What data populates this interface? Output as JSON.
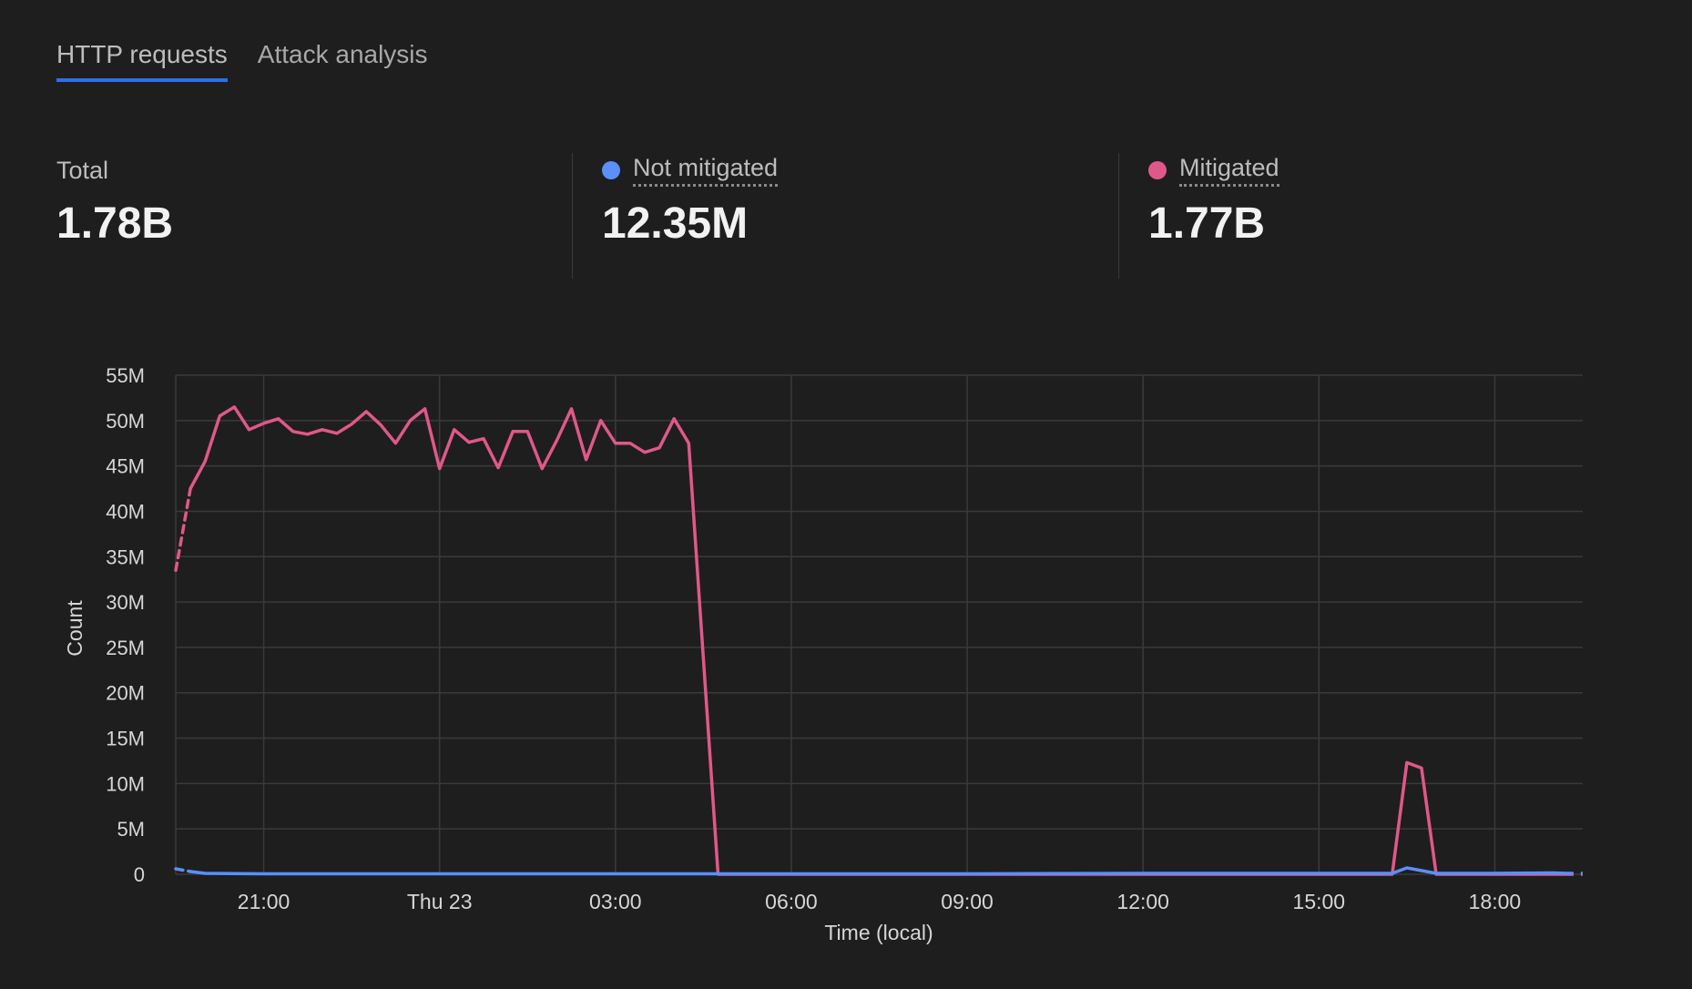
{
  "tabs": [
    {
      "label": "HTTP requests",
      "active": true
    },
    {
      "label": "Attack analysis",
      "active": false
    }
  ],
  "stats": {
    "total": {
      "label": "Total",
      "value": "1.78B"
    },
    "not_mitigated": {
      "label": "Not mitigated",
      "value": "12.35M",
      "color": "#5b8ff9"
    },
    "mitigated": {
      "label": "Mitigated",
      "value": "1.77B",
      "color": "#e0588a"
    }
  },
  "colors": {
    "accent": "#2f6feb",
    "not_mitigated": "#5b8ff9",
    "mitigated": "#e0588a"
  },
  "chart_data": {
    "type": "line",
    "xlabel": "Time (local)",
    "ylabel": "Count",
    "ylim": [
      0,
      55
    ],
    "y_ticks": [
      0,
      5,
      10,
      15,
      20,
      25,
      30,
      35,
      40,
      45,
      50,
      55
    ],
    "y_tick_labels": [
      "0",
      "5M",
      "10M",
      "15M",
      "20M",
      "25M",
      "30M",
      "35M",
      "40M",
      "45M",
      "50M",
      "55M"
    ],
    "y_unit": "M",
    "xlim": [
      "Wed 22 19:30",
      "Thu 23 19:30"
    ],
    "x_ticks": [
      "Wed 22 21:00",
      "Thu 23 00:00",
      "Thu 23 03:00",
      "Thu 23 06:00",
      "Thu 23 09:00",
      "Thu 23 12:00",
      "Thu 23 15:00",
      "Thu 23 18:00"
    ],
    "x_tick_labels": [
      "21:00",
      "Thu 23",
      "03:00",
      "06:00",
      "09:00",
      "12:00",
      "15:00",
      "18:00"
    ],
    "grid": true,
    "legend": "none",
    "series": [
      {
        "name": "Mitigated",
        "color": "#e0588a",
        "dashed_start": true,
        "points": [
          [
            "Wed 22 19:30",
            33.5
          ],
          [
            "Wed 22 19:45",
            42.5
          ],
          [
            "Wed 22 20:00",
            45.5
          ],
          [
            "Wed 22 20:15",
            50.5
          ],
          [
            "Wed 22 20:30",
            51.5
          ],
          [
            "Wed 22 20:45",
            49.0
          ],
          [
            "Wed 22 21:00",
            49.7
          ],
          [
            "Wed 22 21:15",
            50.2
          ],
          [
            "Wed 22 21:30",
            48.8
          ],
          [
            "Wed 22 21:45",
            48.5
          ],
          [
            "Wed 22 22:00",
            49.0
          ],
          [
            "Wed 22 22:15",
            48.6
          ],
          [
            "Wed 22 22:30",
            49.6
          ],
          [
            "Wed 22 22:45",
            51.0
          ],
          [
            "Wed 22 23:00",
            49.5
          ],
          [
            "Wed 22 23:15",
            47.5
          ],
          [
            "Wed 22 23:30",
            50.0
          ],
          [
            "Wed 22 23:45",
            51.3
          ],
          [
            "Thu 23 00:00",
            44.7
          ],
          [
            "Thu 23 00:15",
            49.0
          ],
          [
            "Thu 23 00:30",
            47.6
          ],
          [
            "Thu 23 00:45",
            48.0
          ],
          [
            "Thu 23 01:00",
            44.8
          ],
          [
            "Thu 23 01:15",
            48.8
          ],
          [
            "Thu 23 01:30",
            48.8
          ],
          [
            "Thu 23 01:45",
            44.7
          ],
          [
            "Thu 23 02:00",
            47.8
          ],
          [
            "Thu 23 02:15",
            51.3
          ],
          [
            "Thu 23 02:30",
            45.7
          ],
          [
            "Thu 23 02:45",
            50.0
          ],
          [
            "Thu 23 03:00",
            47.5
          ],
          [
            "Thu 23 03:15",
            47.5
          ],
          [
            "Thu 23 03:30",
            46.5
          ],
          [
            "Thu 23 03:45",
            47.0
          ],
          [
            "Thu 23 04:00",
            50.2
          ],
          [
            "Thu 23 04:15",
            47.5
          ],
          [
            "Thu 23 04:45",
            0.0
          ],
          [
            "Thu 23 06:00",
            0.0
          ],
          [
            "Thu 23 07:00",
            0.0
          ],
          [
            "Thu 23 08:00",
            0.0
          ],
          [
            "Thu 23 09:00",
            0.0
          ],
          [
            "Thu 23 10:00",
            0.0
          ],
          [
            "Thu 23 11:00",
            0.0
          ],
          [
            "Thu 23 12:00",
            0.0
          ],
          [
            "Thu 23 13:00",
            0.0
          ],
          [
            "Thu 23 14:00",
            0.0
          ],
          [
            "Thu 23 15:00",
            0.0
          ],
          [
            "Thu 23 16:00",
            0.0
          ],
          [
            "Thu 23 16:15",
            0.0
          ],
          [
            "Thu 23 16:30",
            12.3
          ],
          [
            "Thu 23 16:45",
            11.7
          ],
          [
            "Thu 23 17:00",
            0.0
          ],
          [
            "Thu 23 18:00",
            0.0
          ],
          [
            "Thu 23 19:00",
            0.0
          ],
          [
            "Thu 23 19:15",
            0.0
          ]
        ]
      },
      {
        "name": "Not mitigated",
        "color": "#5b8ff9",
        "dashed_start": true,
        "points": [
          [
            "Wed 22 19:30",
            0.6
          ],
          [
            "Wed 22 19:45",
            0.3
          ],
          [
            "Wed 22 20:00",
            0.1
          ],
          [
            "Wed 22 21:00",
            0.05
          ],
          [
            "Wed 22 22:00",
            0.05
          ],
          [
            "Thu 23 00:00",
            0.05
          ],
          [
            "Thu 23 03:00",
            0.05
          ],
          [
            "Thu 23 06:00",
            0.05
          ],
          [
            "Thu 23 09:00",
            0.05
          ],
          [
            "Thu 23 12:00",
            0.1
          ],
          [
            "Thu 23 15:00",
            0.1
          ],
          [
            "Thu 23 16:15",
            0.1
          ],
          [
            "Thu 23 16:30",
            0.7
          ],
          [
            "Thu 23 16:45",
            0.4
          ],
          [
            "Thu 23 17:00",
            0.1
          ],
          [
            "Thu 23 18:00",
            0.1
          ],
          [
            "Thu 23 19:00",
            0.15
          ],
          [
            "Thu 23 19:15",
            0.1
          ]
        ]
      }
    ]
  }
}
